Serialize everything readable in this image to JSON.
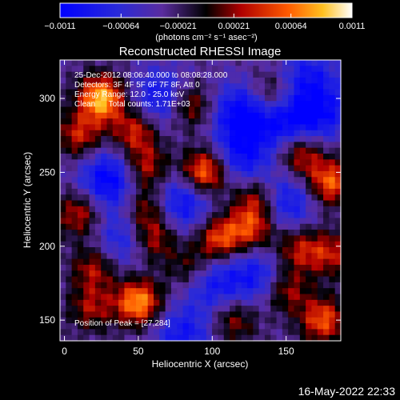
{
  "chart_data": {
    "type": "heatmap",
    "title": "Reconstructed RHESSI Image",
    "xlabel": "Heliocentric X (arcsec)",
    "ylabel": "Heliocentric Y (arcsec)",
    "xlim": [
      -3,
      187
    ],
    "ylim": [
      136,
      326
    ],
    "x_ticks": [
      0,
      50,
      100,
      150
    ],
    "y_ticks": [
      150,
      200,
      250,
      300
    ],
    "colorbar": {
      "range": [
        -0.0011,
        0.0011
      ],
      "tick_values": [
        -0.0011,
        -0.00064,
        -0.00021,
        0.00021,
        0.00064,
        0.0011
      ],
      "tick_labels": [
        "−0.0011",
        "−0.00064",
        "−0.00021",
        "0.00021",
        "0.00064",
        "0.0011"
      ],
      "unit_label": "(photons cm⁻² s⁻¹ asec⁻²)"
    },
    "colors": {
      "low": "#2020d0",
      "mid_low": "#5a2c9e",
      "zero": "#000000",
      "mid_high": "#cc1010",
      "high": "#ff8c00",
      "peak": "#ffffc0"
    },
    "grid": false,
    "annotations": {
      "time_range": "25-Dec-2012 08:06:40.000 to 08:08:28.000",
      "detectors": "Detectors: 3F 4F 5F 6F 7F 8F, Att 0",
      "energy_range": "Energy Range: 12.0 - 25.0 keV",
      "clean_counts": "Clean      Total counts: 1.71E+03",
      "peak_position": "Position of Peak = [27,284]"
    },
    "peak": {
      "x": 27,
      "y": 284
    },
    "hotspots": [
      {
        "x": 25,
        "y": 300,
        "v": 1.0
      },
      {
        "x": 10,
        "y": 275,
        "v": 0.55
      },
      {
        "x": 48,
        "y": 278,
        "v": 0.6
      },
      {
        "x": 85,
        "y": 295,
        "v": 0.55
      },
      {
        "x": 140,
        "y": 302,
        "v": 0.5
      },
      {
        "x": 55,
        "y": 253,
        "v": 0.55
      },
      {
        "x": 95,
        "y": 250,
        "v": 0.9
      },
      {
        "x": 160,
        "y": 262,
        "v": 0.6
      },
      {
        "x": 180,
        "y": 243,
        "v": 0.75
      },
      {
        "x": 130,
        "y": 232,
        "v": 0.55
      },
      {
        "x": 10,
        "y": 222,
        "v": 0.55
      },
      {
        "x": 55,
        "y": 225,
        "v": 0.5
      },
      {
        "x": 60,
        "y": 205,
        "v": 0.55
      },
      {
        "x": 105,
        "y": 205,
        "v": 0.7
      },
      {
        "x": 127,
        "y": 212,
        "v": 0.6
      },
      {
        "x": 158,
        "y": 198,
        "v": 0.5
      },
      {
        "x": 180,
        "y": 195,
        "v": 0.5
      },
      {
        "x": 20,
        "y": 185,
        "v": 0.5
      },
      {
        "x": 150,
        "y": 170,
        "v": 0.5
      },
      {
        "x": 50,
        "y": 162,
        "v": 0.9
      },
      {
        "x": 175,
        "y": 150,
        "v": 0.7
      },
      {
        "x": 115,
        "y": 150,
        "v": 0.45
      },
      {
        "x": 18,
        "y": 158,
        "v": 0.45
      },
      {
        "x": 85,
        "y": 185,
        "v": 0.4
      }
    ],
    "coldspots": [
      {
        "x": 120,
        "y": 290,
        "v": -0.7
      },
      {
        "x": 150,
        "y": 285,
        "v": -0.6
      },
      {
        "x": 65,
        "y": 300,
        "v": -0.55
      },
      {
        "x": 30,
        "y": 245,
        "v": -0.7
      },
      {
        "x": 120,
        "y": 260,
        "v": -0.55
      },
      {
        "x": 175,
        "y": 290,
        "v": -0.5
      },
      {
        "x": 80,
        "y": 230,
        "v": -0.6
      },
      {
        "x": 150,
        "y": 230,
        "v": -0.55
      },
      {
        "x": 100,
        "y": 175,
        "v": -0.5
      },
      {
        "x": 40,
        "y": 205,
        "v": -0.45
      },
      {
        "x": 130,
        "y": 180,
        "v": -0.5
      },
      {
        "x": 80,
        "y": 140,
        "v": -0.5
      },
      {
        "x": 165,
        "y": 315,
        "v": -0.45
      }
    ]
  },
  "footer": {
    "timestamp": "16-May-2022 22:33"
  }
}
